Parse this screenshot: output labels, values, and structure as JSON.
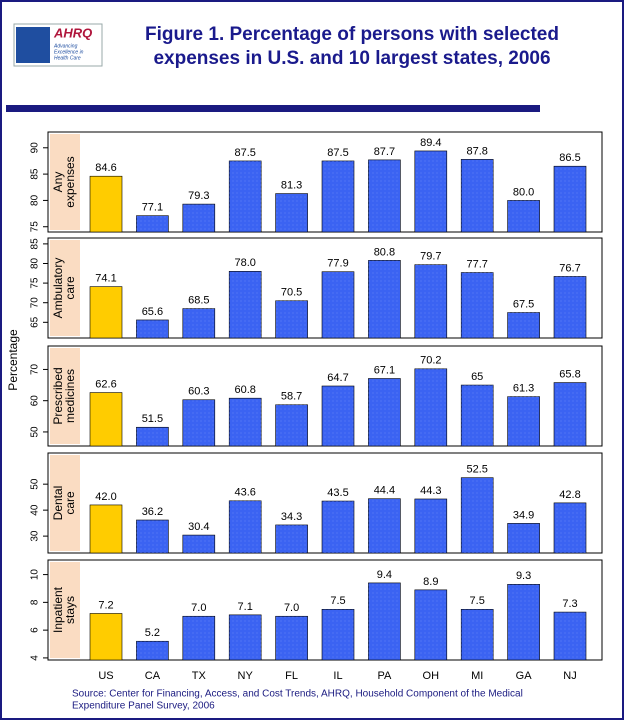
{
  "logo": {
    "name": "AHRQ",
    "tagline": [
      "Advancing",
      "Excellence in",
      "Health Care"
    ]
  },
  "chart_data": {
    "type": "bar",
    "title": [
      "Figure 1. Percentage of persons with selected",
      "expenses in U.S. and 10 largest states, 2006"
    ],
    "y_label": "Percentage",
    "categories": [
      "US",
      "CA",
      "TX",
      "NY",
      "FL",
      "IL",
      "PA",
      "OH",
      "MI",
      "GA",
      "NJ"
    ],
    "color": "#3b63f2",
    "highlight_color": "#ffcc00",
    "highlight_index": 0,
    "panels": [
      {
        "label": [
          "Any",
          "expenses"
        ],
        "values": [
          84.6,
          77.1,
          79.3,
          87.5,
          81.3,
          87.5,
          87.7,
          89.4,
          87.8,
          80.0,
          86.5
        ],
        "value_labels": [
          "84.6",
          "77.1",
          "79.3",
          "87.5",
          "81.3",
          "87.5",
          "87.7",
          "89.4",
          "87.8",
          "80.0",
          "86.5"
        ],
        "ylim": [
          74,
          93
        ],
        "yticks": [
          75,
          80,
          85,
          90
        ]
      },
      {
        "label": [
          "Ambulatory",
          "care"
        ],
        "values": [
          74.1,
          65.6,
          68.5,
          78.0,
          70.5,
          77.9,
          80.8,
          79.7,
          77.7,
          67.5,
          76.7
        ],
        "value_labels": [
          "74.1",
          "65.6",
          "68.5",
          "78.0",
          "70.5",
          "77.9",
          "80.8",
          "79.7",
          "77.7",
          "67.5",
          "76.7"
        ],
        "ylim": [
          61,
          86.5
        ],
        "yticks": [
          65,
          70,
          75,
          80,
          85
        ]
      },
      {
        "label": [
          "Prescribed",
          "medicines"
        ],
        "values": [
          62.6,
          51.5,
          60.3,
          60.8,
          58.7,
          64.7,
          67.1,
          70.2,
          65.0,
          61.3,
          65.8
        ],
        "ylim": [
          45.5,
          77.5
        ],
        "yticks": [
          50,
          60,
          70
        ]
      },
      {
        "label": [
          "Dental",
          "care"
        ],
        "values": [
          42.0,
          36.2,
          30.4,
          43.6,
          34.3,
          43.5,
          44.4,
          44.3,
          52.5,
          34.9,
          42.8
        ],
        "value_labels": [
          "42.0",
          "36.2",
          "30.4",
          "43.6",
          "34.3",
          "43.5",
          "44.4",
          "44.3",
          "52.5",
          "34.9",
          "42.8"
        ],
        "ylim": [
          23.5,
          62
        ],
        "yticks": [
          30,
          40,
          50
        ]
      },
      {
        "label": [
          "Inpatient",
          "stays"
        ],
        "values": [
          7.2,
          5.2,
          7.0,
          7.1,
          7.0,
          7.5,
          9.4,
          8.9,
          7.5,
          9.3,
          7.3
        ],
        "value_labels": [
          "7.2",
          "5.2",
          "7.0",
          "7.1",
          "7.0",
          "7.5",
          "9.4",
          "8.9",
          "7.5",
          "9.3",
          "7.3"
        ],
        "ylim": [
          3.85,
          11.05
        ],
        "yticks": [
          4,
          6,
          8,
          10
        ]
      }
    ],
    "source": [
      "Source: Center for Financing, Access, and Cost Trends, AHRQ, Household Component of the Medical",
      "Expenditure Panel Survey, 2006"
    ]
  }
}
